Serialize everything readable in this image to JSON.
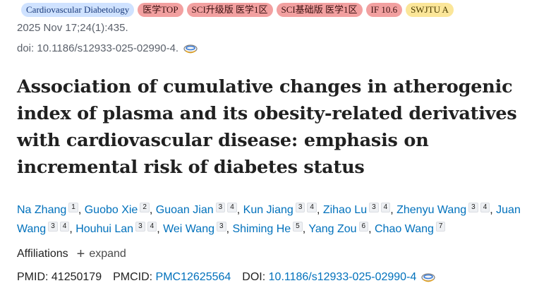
{
  "badges": [
    {
      "label": "Cardiovascular Diabetology",
      "color": "#cfe2ff"
    },
    {
      "label": "医学TOP",
      "color": "#f2a0a0"
    },
    {
      "label": "SCI升级版 医学1区",
      "color": "#f2a0a0"
    },
    {
      "label": "SCI基础版 医学1区",
      "color": "#f2a0a0"
    },
    {
      "label": "IF 10.6",
      "color": "#f2a0a0"
    },
    {
      "label": "SWJTU A",
      "color": "#fbe699"
    }
  ],
  "citation": {
    "date_volume": "2025 Nov 17;24(1):435.",
    "doi_line": "doi: 10.1186/s12933-025-02990-4."
  },
  "title": "Association of cumulative changes in atherogenic index of plasma and its obesity-related derivatives with cardiovascular disease: emphasis on incremental risk of diabetes status",
  "authors": [
    {
      "name": "Na Zhang",
      "affs": [
        "1"
      ]
    },
    {
      "name": "Guobo Xie",
      "affs": [
        "2"
      ]
    },
    {
      "name": "Guoan Jian",
      "affs": [
        "3",
        "4"
      ]
    },
    {
      "name": "Kun Jiang",
      "affs": [
        "3",
        "4"
      ]
    },
    {
      "name": "Zihao Lu",
      "affs": [
        "3",
        "4"
      ]
    },
    {
      "name": "Zhenyu Wang",
      "affs": [
        "3",
        "4"
      ]
    },
    {
      "name": "Juan Wang",
      "affs": [
        "3",
        "4"
      ]
    },
    {
      "name": "Houhui Lan",
      "affs": [
        "3",
        "4"
      ]
    },
    {
      "name": "Wei Wang",
      "affs": [
        "3"
      ]
    },
    {
      "name": "Shiming He",
      "affs": [
        "5"
      ]
    },
    {
      "name": "Yang Zou",
      "affs": [
        "6"
      ]
    },
    {
      "name": "Chao Wang",
      "affs": [
        "7"
      ]
    }
  ],
  "affiliations": {
    "label": "Affiliations",
    "expand_label": "expand"
  },
  "identifiers": {
    "pmid_label": "PMID:",
    "pmid": "41250179",
    "pmcid_label": "PMCID:",
    "pmcid": "PMC12625564",
    "doi_label": "DOI:",
    "doi": "10.1186/s12933-025-02990-4"
  },
  "icons": {
    "citation_tool": "citation-tool-icon"
  },
  "colors": {
    "link": "#0071bc",
    "text": "#212121",
    "muted": "#5b616b"
  }
}
